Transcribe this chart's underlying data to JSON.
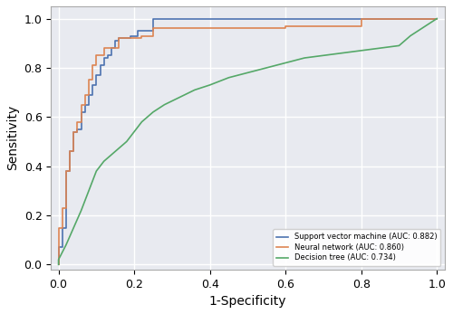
{
  "title": "",
  "xlabel": "1-Specificity",
  "ylabel": "Sensitivity",
  "xlim": [
    -0.02,
    1.02
  ],
  "ylim": [
    -0.02,
    1.05
  ],
  "background_color": "#e8eaf0",
  "grid_color": "white",
  "svm_label": "Support vector machine (AUC: 0.882)",
  "nn_label": "Neural network (AUC: 0.860)",
  "dt_label": "Decision tree (AUC: 0.734)",
  "svm_color": "#4c72b0",
  "nn_color": "#dd8452",
  "dt_color": "#55a868",
  "svm_fpr": [
    0.0,
    0.0,
    0.01,
    0.01,
    0.02,
    0.02,
    0.03,
    0.03,
    0.04,
    0.04,
    0.05,
    0.05,
    0.06,
    0.06,
    0.07,
    0.07,
    0.08,
    0.08,
    0.09,
    0.09,
    0.1,
    0.1,
    0.11,
    0.11,
    0.12,
    0.12,
    0.13,
    0.13,
    0.14,
    0.14,
    0.15,
    0.15,
    0.16,
    0.16,
    0.17,
    0.17,
    0.19,
    0.19,
    0.21,
    0.21,
    0.25,
    0.25,
    0.6,
    0.6,
    0.8,
    0.8,
    1.0
  ],
  "svm_tpr": [
    0.0,
    0.07,
    0.07,
    0.15,
    0.15,
    0.38,
    0.38,
    0.46,
    0.46,
    0.54,
    0.54,
    0.55,
    0.55,
    0.62,
    0.62,
    0.65,
    0.65,
    0.69,
    0.69,
    0.73,
    0.73,
    0.77,
    0.77,
    0.81,
    0.81,
    0.84,
    0.84,
    0.85,
    0.85,
    0.88,
    0.88,
    0.91,
    0.91,
    0.92,
    0.92,
    0.92,
    0.92,
    0.93,
    0.93,
    0.95,
    0.95,
    1.0,
    1.0,
    1.0,
    1.0,
    1.0,
    1.0
  ],
  "nn_fpr": [
    0.0,
    0.0,
    0.01,
    0.01,
    0.02,
    0.02,
    0.03,
    0.03,
    0.04,
    0.04,
    0.05,
    0.05,
    0.06,
    0.06,
    0.07,
    0.07,
    0.08,
    0.08,
    0.09,
    0.09,
    0.1,
    0.1,
    0.12,
    0.12,
    0.14,
    0.14,
    0.16,
    0.16,
    0.19,
    0.19,
    0.22,
    0.22,
    0.25,
    0.25,
    0.6,
    0.6,
    0.8,
    0.8,
    1.0
  ],
  "nn_tpr": [
    0.0,
    0.15,
    0.15,
    0.23,
    0.23,
    0.38,
    0.38,
    0.46,
    0.46,
    0.54,
    0.54,
    0.58,
    0.58,
    0.65,
    0.65,
    0.69,
    0.69,
    0.75,
    0.75,
    0.81,
    0.81,
    0.85,
    0.85,
    0.88,
    0.88,
    0.88,
    0.88,
    0.92,
    0.92,
    0.92,
    0.92,
    0.93,
    0.93,
    0.96,
    0.96,
    0.97,
    0.97,
    1.0,
    1.0
  ],
  "dt_fpr": [
    0.0,
    0.0,
    0.02,
    0.04,
    0.06,
    0.08,
    0.1,
    0.12,
    0.15,
    0.18,
    0.2,
    0.22,
    0.25,
    0.28,
    0.32,
    0.36,
    0.4,
    0.45,
    0.5,
    0.55,
    0.6,
    0.65,
    0.7,
    0.75,
    0.8,
    0.85,
    0.9,
    0.93,
    1.0
  ],
  "dt_tpr": [
    0.0,
    0.02,
    0.08,
    0.15,
    0.22,
    0.3,
    0.38,
    0.42,
    0.46,
    0.5,
    0.54,
    0.58,
    0.62,
    0.65,
    0.68,
    0.71,
    0.73,
    0.76,
    0.78,
    0.8,
    0.82,
    0.84,
    0.85,
    0.86,
    0.87,
    0.88,
    0.89,
    0.93,
    1.0
  ],
  "xticks": [
    0.0,
    0.2,
    0.4,
    0.6,
    0.8,
    1.0
  ],
  "yticks": [
    0.0,
    0.2,
    0.4,
    0.6,
    0.8,
    1.0
  ],
  "linewidth": 1.2,
  "legend_fontsize": 6.0,
  "axis_fontsize": 10,
  "tick_fontsize": 9
}
